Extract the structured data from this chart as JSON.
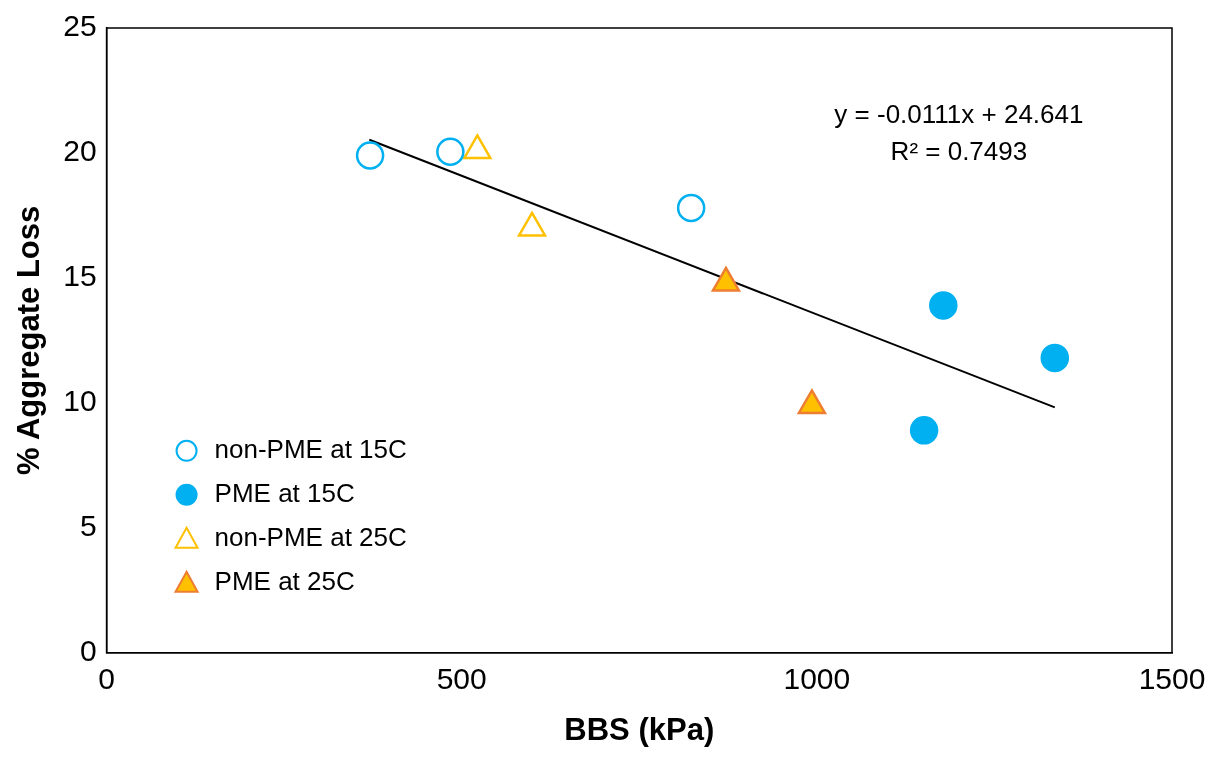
{
  "chart_data": {
    "type": "scatter",
    "xlabel": "BBS (kPa)",
    "ylabel": "% Aggregate Loss",
    "xlim": [
      0,
      1500
    ],
    "xticks": [
      0,
      500,
      1000,
      1500
    ],
    "ylim": [
      0,
      25
    ],
    "yticks": [
      0,
      5,
      10,
      15,
      20,
      25
    ],
    "grid": false,
    "legend": "bottom left",
    "annotations": [
      "y = -0.0111x + 24.641",
      "R² = 0.7493"
    ],
    "series": [
      {
        "name": "non-PME at 15C",
        "color": "#00b0f0",
        "marker": "circle",
        "x": [
          371,
          484,
          823
        ],
        "values": [
          19.9,
          20.05,
          17.8
        ]
      },
      {
        "name": "PME at 15C",
        "color": "#00b0f0",
        "marker": "circle",
        "x": [
          1178,
          1335,
          1151
        ],
        "values": [
          13.9,
          11.8,
          8.9
        ]
      },
      {
        "name": "non-PME at 25C",
        "color": "#ffc000",
        "marker": "triangle",
        "x": [
          522,
          599
        ],
        "values": [
          20.1,
          17.0
        ]
      },
      {
        "name": "PME at 25C",
        "color": "#ffc000",
        "marker": "triangle",
        "x": [
          872,
          993
        ],
        "values": [
          14.8,
          9.9
        ]
      },
      {
        "type": "line",
        "color": "#000000",
        "marker": "none",
        "x": [
          370,
          1335
        ],
        "values": [
          20.53,
          9.82
        ]
      }
    ]
  }
}
